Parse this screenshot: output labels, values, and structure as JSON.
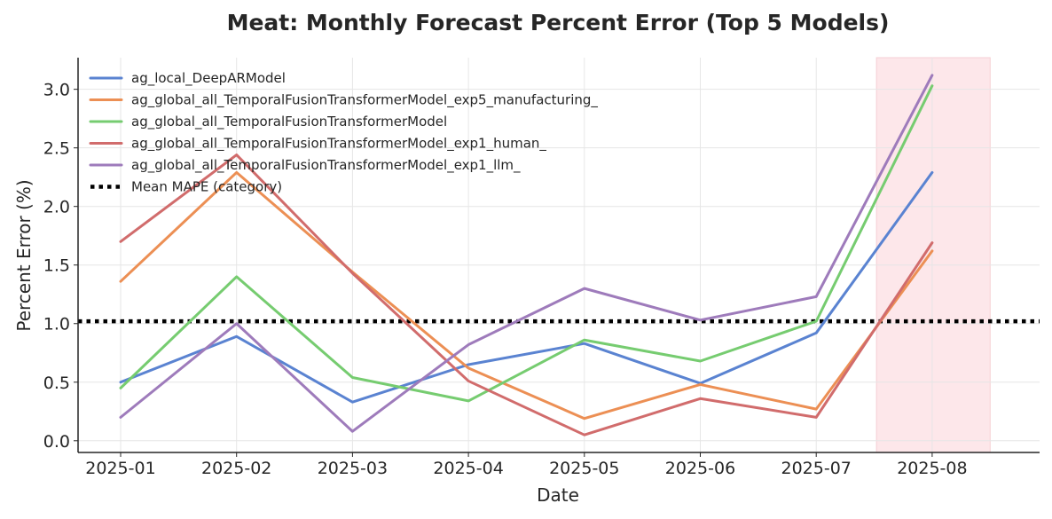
{
  "chart_data": {
    "type": "line",
    "title": "Meat: Monthly Forecast Percent Error (Top 5 Models)",
    "xlabel": "Date",
    "ylabel": "Percent Error (%)",
    "x": [
      "2025-01",
      "2025-02",
      "2025-03",
      "2025-04",
      "2025-05",
      "2025-06",
      "2025-07",
      "2025-08"
    ],
    "yticks": [
      "0.0",
      "0.5",
      "1.0",
      "1.5",
      "2.0",
      "2.5",
      "3.0"
    ],
    "ylim": [
      -0.1,
      3.27
    ],
    "grid": true,
    "legend_position": "top-left",
    "series": [
      {
        "name": "ag_local_DeepARModel",
        "color": "#5a83d1",
        "values": [
          0.5,
          0.89,
          0.33,
          0.65,
          0.83,
          0.49,
          0.92,
          2.29
        ]
      },
      {
        "name": "ag_global_all_TemporalFusionTransformerModel_exp5_manufacturing_",
        "color": "#ec8f54",
        "values": [
          1.36,
          2.29,
          1.44,
          0.62,
          0.19,
          0.48,
          0.27,
          1.62
        ]
      },
      {
        "name": "ag_global_all_TemporalFusionTransformerModel",
        "color": "#76cc70",
        "values": [
          0.45,
          1.4,
          0.54,
          0.34,
          0.86,
          0.68,
          1.02,
          3.03
        ]
      },
      {
        "name": "ag_global_all_TemporalFusionTransformerModel_exp1_human_",
        "color": "#d16c6c",
        "values": [
          1.7,
          2.44,
          1.43,
          0.51,
          0.05,
          0.36,
          0.2,
          1.69
        ]
      },
      {
        "name": "ag_global_all_TemporalFusionTransformerModel_exp1_llm_",
        "color": "#9e7bbb",
        "values": [
          0.2,
          1.0,
          0.08,
          0.82,
          1.3,
          1.03,
          1.23,
          3.12
        ]
      }
    ],
    "reference_line": {
      "name": "Mean MAPE (category)",
      "value": 1.02,
      "color": "#000000"
    },
    "highlight_span": {
      "from": "2025-07",
      "to": "2025-08",
      "start_offset": 0.52,
      "end_offset": 0.5,
      "color": "#fde7ea"
    }
  }
}
